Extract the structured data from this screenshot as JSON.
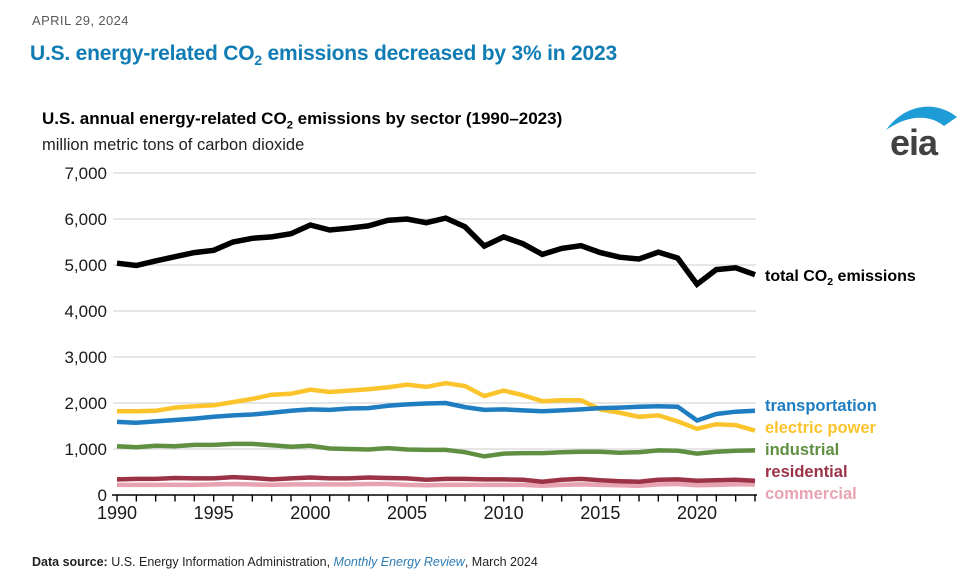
{
  "page": {
    "date": "APRIL 29, 2024",
    "title_prefix": "U.S. energy-related CO",
    "title_sub": "2",
    "title_suffix": " emissions decreased by 3% in 2023"
  },
  "logo": {
    "text": "eia",
    "swoosh_color": "#1e9cd7",
    "text_color": "#414042"
  },
  "chart": {
    "title_prefix": "U.S. annual energy-related CO",
    "title_sub": "2",
    "title_suffix": " emissions by sector (1990–2023)",
    "subtitle": "million metric tons of carbon dioxide"
  },
  "footer": {
    "label": "Data source: ",
    "source": "U.S. Energy Information Administration, ",
    "link": "Monthly Energy Review",
    "suffix": ", March 2024"
  },
  "chart_data": {
    "type": "line",
    "title": "U.S. annual energy-related CO2 emissions by sector (1990-2023)",
    "ylabel": "million metric tons of carbon dioxide",
    "ylim": [
      0,
      7000
    ],
    "yticks": [
      0,
      1000,
      2000,
      3000,
      4000,
      5000,
      6000,
      7000
    ],
    "xlim": [
      1990,
      2023
    ],
    "xticks_labeled": [
      1990,
      1995,
      2000,
      2005,
      2010,
      2015,
      2020
    ],
    "grid": "horizontal",
    "gridline_color": "#d8d8d8",
    "legend_position": "right-of-lines",
    "x": [
      1990,
      1991,
      1992,
      1993,
      1994,
      1995,
      1996,
      1997,
      1998,
      1999,
      2000,
      2001,
      2002,
      2003,
      2004,
      2005,
      2006,
      2007,
      2008,
      2009,
      2010,
      2011,
      2012,
      2013,
      2014,
      2015,
      2016,
      2017,
      2018,
      2019,
      2020,
      2021,
      2022,
      2023
    ],
    "total_label": {
      "prefix": "total CO",
      "sub": "2",
      "suffix": " emissions"
    },
    "series": [
      {
        "name": "total",
        "label": "total CO2 emissions",
        "color": "#000000",
        "values": [
          5040,
          4990,
          5090,
          5180,
          5270,
          5320,
          5500,
          5580,
          5610,
          5680,
          5870,
          5760,
          5800,
          5850,
          5970,
          6000,
          5920,
          6020,
          5830,
          5410,
          5610,
          5460,
          5230,
          5360,
          5420,
          5270,
          5170,
          5130,
          5280,
          5150,
          4580,
          4900,
          4940,
          4790
        ]
      },
      {
        "name": "transportation",
        "label": "transportation",
        "color": "#1f7dc2",
        "values": [
          1590,
          1570,
          1600,
          1630,
          1660,
          1700,
          1730,
          1750,
          1790,
          1830,
          1860,
          1850,
          1880,
          1890,
          1940,
          1970,
          1990,
          2000,
          1910,
          1850,
          1860,
          1840,
          1820,
          1840,
          1860,
          1890,
          1900,
          1920,
          1930,
          1920,
          1620,
          1760,
          1810,
          1830
        ]
      },
      {
        "name": "electric-power",
        "label": "electric power",
        "color": "#fbc42d",
        "values": [
          1820,
          1820,
          1830,
          1900,
          1930,
          1950,
          2020,
          2090,
          2180,
          2200,
          2290,
          2240,
          2270,
          2300,
          2340,
          2400,
          2350,
          2430,
          2370,
          2150,
          2270,
          2170,
          2040,
          2060,
          2060,
          1860,
          1790,
          1700,
          1730,
          1600,
          1440,
          1540,
          1520,
          1400
        ]
      },
      {
        "name": "industrial",
        "label": "industrial",
        "color": "#5f9041",
        "values": [
          1060,
          1040,
          1070,
          1060,
          1090,
          1090,
          1110,
          1110,
          1080,
          1050,
          1070,
          1010,
          1000,
          990,
          1020,
          990,
          980,
          980,
          930,
          840,
          900,
          910,
          910,
          930,
          940,
          940,
          920,
          930,
          970,
          960,
          900,
          940,
          960,
          970
        ]
      },
      {
        "name": "residential",
        "label": "residential",
        "color": "#9c3246",
        "values": [
          340,
          350,
          350,
          370,
          360,
          360,
          390,
          370,
          340,
          360,
          380,
          360,
          360,
          380,
          370,
          360,
          330,
          350,
          350,
          340,
          340,
          330,
          290,
          330,
          350,
          320,
          300,
          290,
          330,
          340,
          310,
          320,
          330,
          310
        ]
      },
      {
        "name": "commercial",
        "label": "commercial",
        "color": "#e8a3b2",
        "values": [
          220,
          220,
          220,
          220,
          220,
          230,
          240,
          230,
          220,
          230,
          230,
          230,
          230,
          240,
          240,
          220,
          210,
          220,
          220,
          220,
          220,
          220,
          200,
          220,
          230,
          220,
          210,
          200,
          230,
          240,
          210,
          220,
          230,
          230
        ]
      }
    ]
  }
}
